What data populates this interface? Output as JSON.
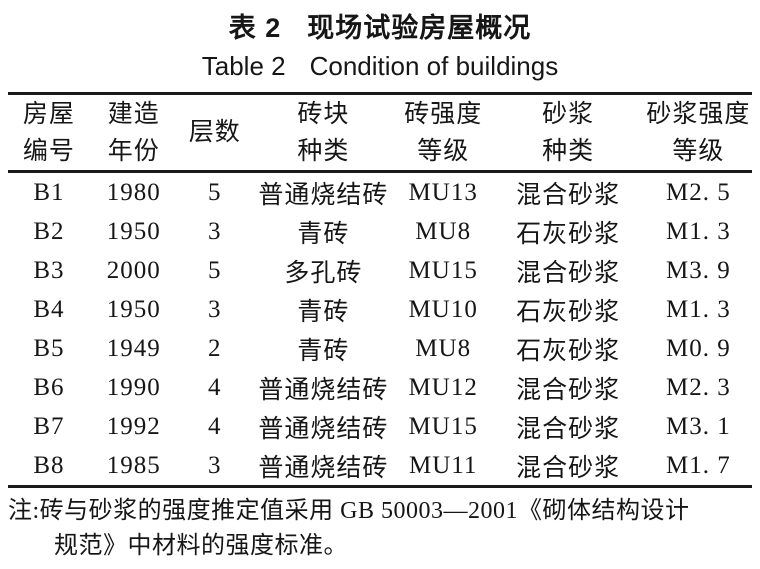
{
  "title": {
    "zh_prefix": "表 2",
    "zh_main": "现场试验房屋概况",
    "en_prefix": "Table 2",
    "en_main": "Condition of buildings"
  },
  "table": {
    "columns": [
      {
        "line1": "房屋",
        "line2": "编号"
      },
      {
        "line1": "建造",
        "line2": "年份"
      },
      {
        "line1": "层数",
        "line2": ""
      },
      {
        "line1": "砖块",
        "line2": "种类"
      },
      {
        "line1": "砖强度",
        "line2": "等级"
      },
      {
        "line1": "砂浆",
        "line2": "种类"
      },
      {
        "line1": "砂浆强度",
        "line2": "等级"
      }
    ],
    "rows": [
      [
        "B1",
        "1980",
        "5",
        "普通烧结砖",
        "MU13",
        "混合砂浆",
        "M2. 5"
      ],
      [
        "B2",
        "1950",
        "3",
        "青砖",
        "MU8",
        "石灰砂浆",
        "M1. 3"
      ],
      [
        "B3",
        "2000",
        "5",
        "多孔砖",
        "MU15",
        "混合砂浆",
        "M3. 9"
      ],
      [
        "B4",
        "1950",
        "3",
        "青砖",
        "MU10",
        "石灰砂浆",
        "M1. 3"
      ],
      [
        "B5",
        "1949",
        "2",
        "青砖",
        "MU8",
        "石灰砂浆",
        "M0. 9"
      ],
      [
        "B6",
        "1990",
        "4",
        "普通烧结砖",
        "MU12",
        "混合砂浆",
        "M2. 3"
      ],
      [
        "B7",
        "1992",
        "4",
        "普通烧结砖",
        "MU15",
        "混合砂浆",
        "M3. 1"
      ],
      [
        "B8",
        "1985",
        "3",
        "普通烧结砖",
        "MU11",
        "混合砂浆",
        "M1. 7"
      ]
    ]
  },
  "note": {
    "line1": "注:砖与砂浆的强度推定值采用 GB 50003—2001《砌体结构设计",
    "line2": "规范》中材料的强度标准。"
  },
  "colors": {
    "text": "#161616",
    "rule": "#1a1a1a",
    "background": "#ffffff"
  }
}
